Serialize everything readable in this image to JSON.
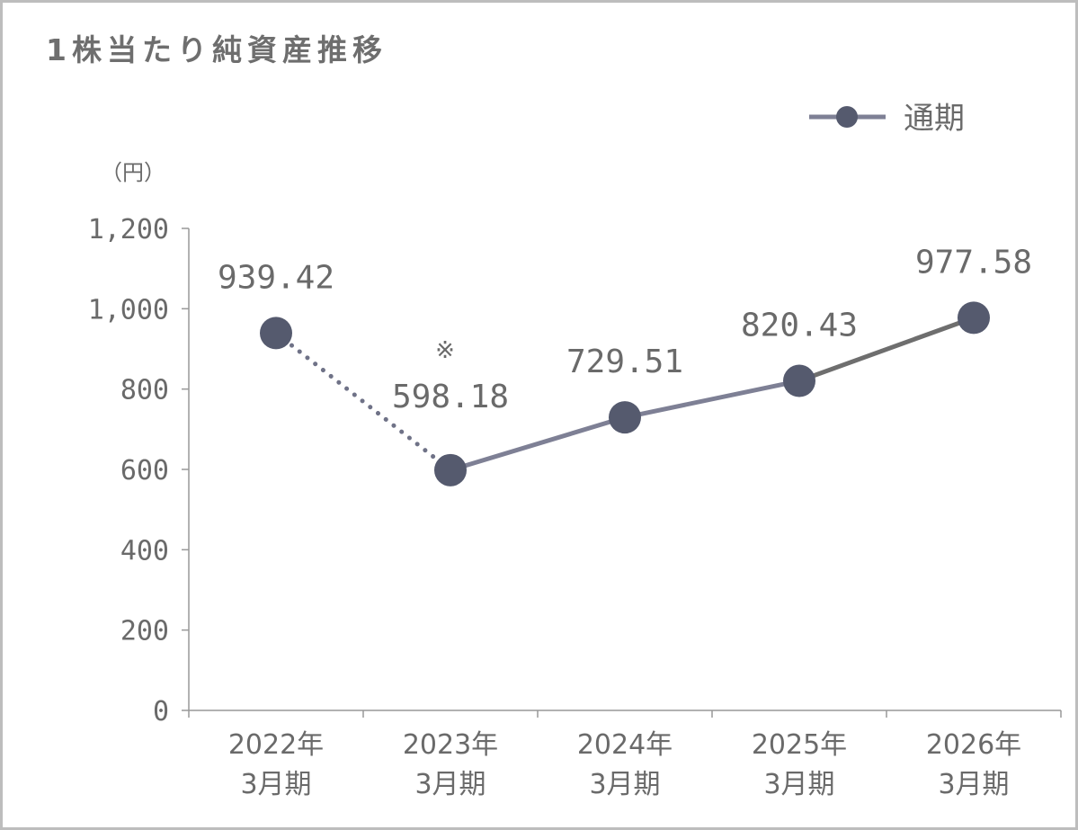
{
  "chart_data": {
    "type": "line",
    "title": "1株当たり純資産推移",
    "ylabel": "（円）",
    "ylim": [
      0,
      1200
    ],
    "yticks": [
      0,
      200,
      400,
      600,
      800,
      1000,
      1200
    ],
    "ytick_labels": [
      "0",
      "200",
      "400",
      "600",
      "800",
      "1,000",
      "1,200"
    ],
    "categories": [
      {
        "year": "2022年",
        "period": "3月期"
      },
      {
        "year": "2023年",
        "period": "3月期"
      },
      {
        "year": "2024年",
        "period": "3月期"
      },
      {
        "year": "2025年",
        "period": "3月期"
      },
      {
        "year": "2026年",
        "period": "3月期"
      }
    ],
    "series": [
      {
        "name": "通期",
        "values": [
          939.42,
          598.18,
          729.51,
          820.43,
          977.58
        ],
        "data_labels": [
          "939.42",
          "598.18",
          "729.51",
          "820.43",
          "977.58"
        ],
        "segment_styles": [
          "dotted",
          "solid",
          "solid",
          "solid"
        ]
      }
    ],
    "annotation": {
      "text": "※",
      "category_index": 1
    },
    "legend_position": "top-right",
    "grid": false
  },
  "colors": {
    "marker": "#555a6e",
    "line": "#7e8095",
    "line_last": "#6e6e6e",
    "dotted": "#6f7287",
    "axis": "#999999",
    "text": "#6a6a6a"
  }
}
